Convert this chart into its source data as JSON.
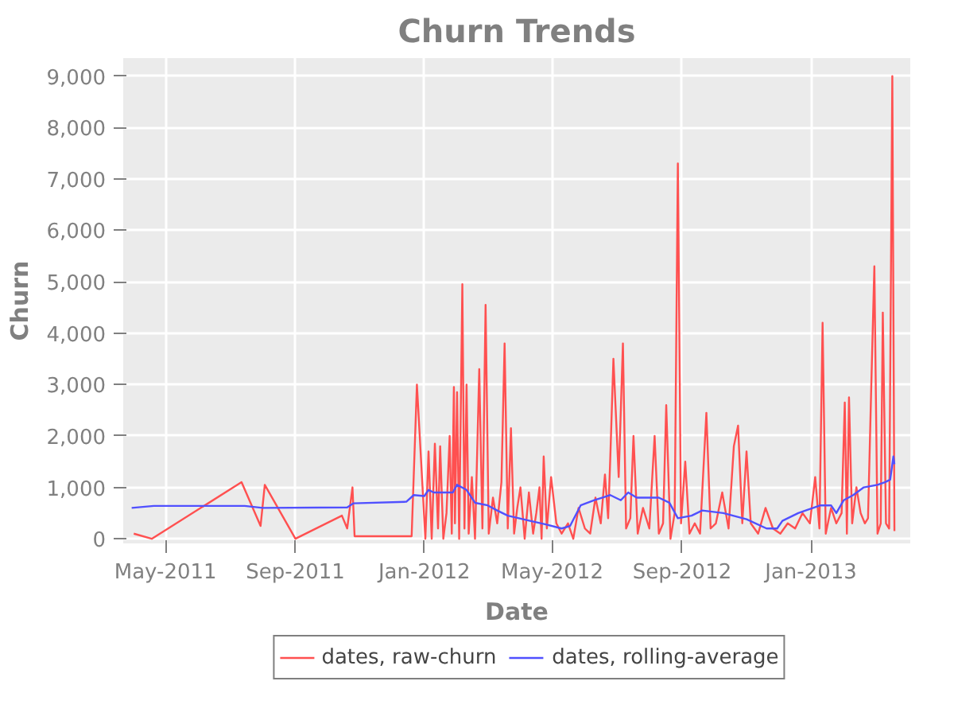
{
  "chart_data": {
    "type": "line",
    "title": "Churn Trends",
    "xlabel": "Date",
    "ylabel": "Churn",
    "xlim": [
      "2011-03-22",
      "2013-04-05"
    ],
    "ylim": [
      -90,
      9350
    ],
    "xticks": [
      {
        "value": "2011-05-01",
        "label": "May-2011"
      },
      {
        "value": "2011-09-01",
        "label": "Sep-2011"
      },
      {
        "value": "2012-01-01",
        "label": "Jan-2012"
      },
      {
        "value": "2012-05-01",
        "label": "May-2012"
      },
      {
        "value": "2012-09-01",
        "label": "Sep-2012"
      },
      {
        "value": "2013-01-01",
        "label": "Jan-2013"
      }
    ],
    "yticks": [
      {
        "value": 0,
        "label": "0"
      },
      {
        "value": 1000,
        "label": "1,000"
      },
      {
        "value": 2000,
        "label": "2,000"
      },
      {
        "value": 3000,
        "label": "3,000"
      },
      {
        "value": 4000,
        "label": "4,000"
      },
      {
        "value": 5000,
        "label": "5,000"
      },
      {
        "value": 6000,
        "label": "6,000"
      },
      {
        "value": 7000,
        "label": "7,000"
      },
      {
        "value": 8000,
        "label": "8,000"
      },
      {
        "value": 9000,
        "label": "9,000"
      }
    ],
    "grid": true,
    "legend": "bottom",
    "line_style": "solid",
    "marker": "none",
    "series": [
      {
        "name": "dates, raw-churn",
        "color": "#ff5050",
        "x": [
          "2011-04-01",
          "2011-04-18",
          "2011-07-12",
          "2011-07-30",
          "2011-08-03",
          "2011-09-01",
          "2011-10-15",
          "2011-10-20",
          "2011-10-25",
          "2011-10-27",
          "2011-12-20",
          "2011-12-25",
          "2012-01-02",
          "2012-01-05",
          "2012-01-08",
          "2012-01-11",
          "2012-01-14",
          "2012-01-16",
          "2012-01-19",
          "2012-01-22",
          "2012-01-25",
          "2012-01-27",
          "2012-01-29",
          "2012-01-30",
          "2012-02-01",
          "2012-02-03",
          "2012-02-06",
          "2012-02-08",
          "2012-02-10",
          "2012-02-12",
          "2012-02-15",
          "2012-02-18",
          "2012-02-22",
          "2012-02-25",
          "2012-02-28",
          "2012-03-02",
          "2012-03-06",
          "2012-03-10",
          "2012-03-14",
          "2012-03-17",
          "2012-03-20",
          "2012-03-23",
          "2012-03-26",
          "2012-03-29",
          "2012-04-01",
          "2012-04-05",
          "2012-04-09",
          "2012-04-13",
          "2012-04-16",
          "2012-04-19",
          "2012-04-21",
          "2012-04-23",
          "2012-04-26",
          "2012-04-30",
          "2012-05-05",
          "2012-05-10",
          "2012-05-16",
          "2012-05-21",
          "2012-05-26",
          "2012-06-01",
          "2012-06-06",
          "2012-06-11",
          "2012-06-16",
          "2012-06-20",
          "2012-06-23",
          "2012-06-25",
          "2012-06-28",
          "2012-07-03",
          "2012-07-07",
          "2012-07-10",
          "2012-07-14",
          "2012-07-17",
          "2012-07-21",
          "2012-07-26",
          "2012-08-01",
          "2012-08-06",
          "2012-08-10",
          "2012-08-14",
          "2012-08-17",
          "2012-08-21",
          "2012-08-25",
          "2012-08-28",
          "2012-08-31",
          "2012-09-04",
          "2012-09-08",
          "2012-09-13",
          "2012-09-18",
          "2012-09-24",
          "2012-09-28",
          "2012-10-03",
          "2012-10-09",
          "2012-10-15",
          "2012-10-20",
          "2012-10-24",
          "2012-10-28",
          "2012-11-01",
          "2012-11-05",
          "2012-11-12",
          "2012-11-19",
          "2012-11-26",
          "2012-12-03",
          "2012-12-10",
          "2012-12-17",
          "2012-12-24",
          "2012-12-31",
          "2013-01-05",
          "2013-01-09",
          "2013-01-12",
          "2013-01-15",
          "2013-01-20",
          "2013-01-25",
          "2013-01-30",
          "2013-02-02",
          "2013-02-04",
          "2013-02-06",
          "2013-02-09",
          "2013-02-13",
          "2013-02-17",
          "2013-02-21",
          "2013-02-24",
          "2013-02-27",
          "2013-03-02",
          "2013-03-05",
          "2013-03-08",
          "2013-03-10",
          "2013-03-13",
          "2013-03-16",
          "2013-03-19",
          "2013-03-21"
        ],
        "values": [
          100,
          0,
          1100,
          250,
          1050,
          0,
          450,
          200,
          1000,
          50,
          50,
          3000,
          0,
          1700,
          0,
          1850,
          200,
          1800,
          0,
          500,
          2000,
          100,
          2950,
          300,
          2850,
          0,
          4950,
          200,
          3000,
          100,
          1200,
          0,
          3300,
          200,
          4550,
          100,
          800,
          300,
          1100,
          3800,
          200,
          2150,
          100,
          600,
          1000,
          0,
          900,
          100,
          500,
          1000,
          0,
          1600,
          200,
          1200,
          300,
          100,
          300,
          0,
          600,
          200,
          100,
          800,
          300,
          1250,
          400,
          1550,
          3500,
          1200,
          3800,
          200,
          400,
          2000,
          100,
          600,
          200,
          2000,
          100,
          300,
          2600,
          0,
          500,
          7300,
          300,
          1500,
          100,
          300,
          100,
          2450,
          200,
          300,
          900,
          200,
          1800,
          2200,
          300,
          1700,
          300,
          100,
          600,
          200,
          100,
          300,
          200,
          500,
          300,
          1200,
          200,
          4200,
          100,
          600,
          300,
          500,
          2650,
          100,
          2750,
          300,
          1000,
          500,
          300,
          400,
          2900,
          5300,
          100,
          300,
          4400,
          300,
          200,
          9000,
          150
        ]
      },
      {
        "name": "dates, rolling-average",
        "color": "#5050ff",
        "x": [
          "2011-03-30",
          "2011-04-20",
          "2011-07-15",
          "2011-08-01",
          "2011-10-20",
          "2011-10-26",
          "2011-12-15",
          "2011-12-22",
          "2012-01-01",
          "2012-01-05",
          "2012-01-10",
          "2012-01-28",
          "2012-02-01",
          "2012-02-10",
          "2012-02-18",
          "2012-03-01",
          "2012-03-10",
          "2012-03-20",
          "2012-04-10",
          "2012-04-25",
          "2012-05-10",
          "2012-05-18",
          "2012-05-28",
          "2012-06-10",
          "2012-06-25",
          "2012-07-05",
          "2012-07-12",
          "2012-07-20",
          "2012-08-10",
          "2012-08-20",
          "2012-08-28",
          "2012-09-10",
          "2012-09-20",
          "2012-10-10",
          "2012-11-01",
          "2012-11-20",
          "2012-11-30",
          "2012-12-05",
          "2012-12-20",
          "2013-01-10",
          "2013-01-20",
          "2013-01-25",
          "2013-02-01",
          "2013-02-10",
          "2013-02-20",
          "2013-03-05",
          "2013-03-12",
          "2013-03-17",
          "2013-03-20",
          "2013-03-21"
        ],
        "values": [
          600,
          640,
          640,
          600,
          610,
          690,
          720,
          850,
          830,
          950,
          900,
          900,
          1050,
          950,
          700,
          650,
          550,
          450,
          350,
          280,
          200,
          250,
          650,
          750,
          850,
          750,
          900,
          800,
          800,
          700,
          400,
          450,
          550,
          500,
          380,
          200,
          200,
          350,
          500,
          650,
          650,
          500,
          750,
          850,
          1000,
          1050,
          1100,
          1150,
          1600,
          1450
        ]
      }
    ]
  }
}
